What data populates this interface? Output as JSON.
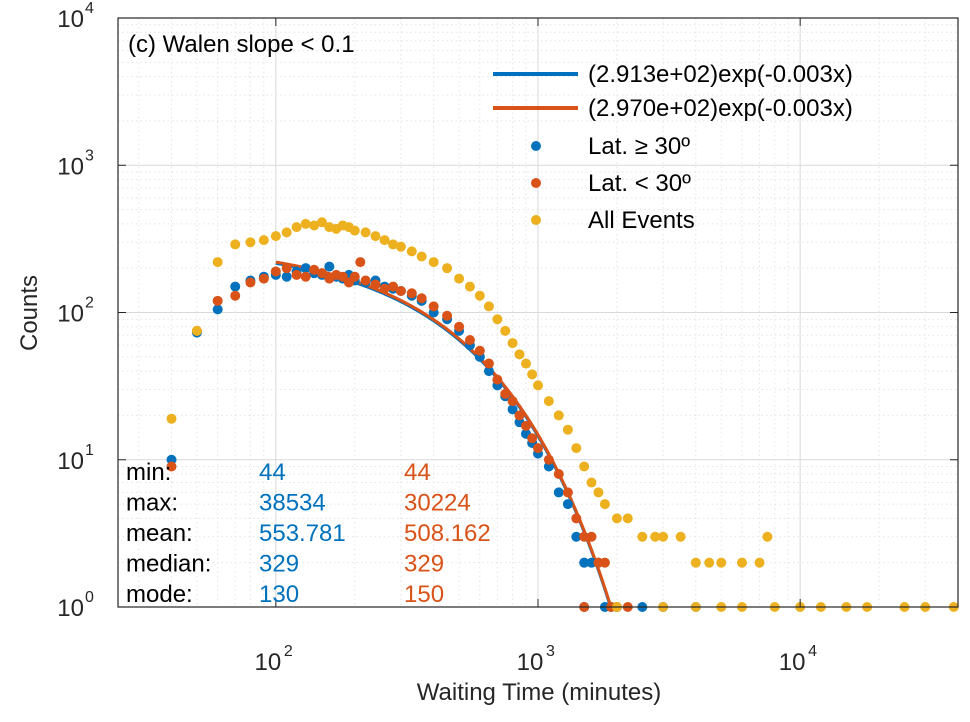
{
  "colors": {
    "lat_high": "#0072BD",
    "lat_low": "#D95319",
    "all_events": "#EDB120",
    "axes": "#262626",
    "grid": "#dcdcdc"
  },
  "chart_data": {
    "type": "scatter",
    "title": "(c) Walen slope < 0.1",
    "xlabel": "Waiting Time (minutes)",
    "ylabel": "Counts",
    "xscale": "log",
    "yscale": "log",
    "xlim": [
      25,
      40000
    ],
    "ylim": [
      1,
      10000
    ],
    "xticks": [
      {
        "value": 100,
        "base": "10",
        "exp": "2"
      },
      {
        "value": 1000,
        "base": "10",
        "exp": "3"
      },
      {
        "value": 10000,
        "base": "10",
        "exp": "4"
      }
    ],
    "yticks": [
      {
        "value": 1,
        "base": "10",
        "exp": "0"
      },
      {
        "value": 10,
        "base": "10",
        "exp": "1"
      },
      {
        "value": 100,
        "base": "10",
        "exp": "2"
      },
      {
        "value": 1000,
        "base": "10",
        "exp": "3"
      },
      {
        "value": 10000,
        "base": "10",
        "exp": "4"
      }
    ],
    "grid": true,
    "legend_position": "top-right",
    "fits": [
      {
        "name": "(2.913e+02)exp(-0.003x)",
        "color": "#0072BD",
        "a": 291.3,
        "b": -0.003,
        "x_range": [
          100,
          1920
        ]
      },
      {
        "name": "(2.970e+02)exp(-0.003x)",
        "color": "#D95319",
        "a": 297.0,
        "b": -0.003,
        "x_range": [
          100,
          1900
        ]
      }
    ],
    "series": [
      {
        "name": "Lat. ≥ 30º",
        "color": "#0072BD",
        "points": [
          [
            40,
            10
          ],
          [
            50,
            73
          ],
          [
            60,
            105
          ],
          [
            70,
            150
          ],
          [
            80,
            165
          ],
          [
            90,
            175
          ],
          [
            100,
            180
          ],
          [
            110,
            175
          ],
          [
            120,
            190
          ],
          [
            130,
            200
          ],
          [
            140,
            185
          ],
          [
            150,
            180
          ],
          [
            160,
            205
          ],
          [
            170,
            175
          ],
          [
            180,
            170
          ],
          [
            190,
            180
          ],
          [
            200,
            165
          ],
          [
            220,
            160
          ],
          [
            240,
            165
          ],
          [
            260,
            150
          ],
          [
            280,
            145
          ],
          [
            300,
            140
          ],
          [
            330,
            130
          ],
          [
            360,
            120
          ],
          [
            400,
            100
          ],
          [
            450,
            90
          ],
          [
            500,
            75
          ],
          [
            550,
            60
          ],
          [
            600,
            50
          ],
          [
            650,
            40
          ],
          [
            700,
            32
          ],
          [
            750,
            27
          ],
          [
            800,
            22
          ],
          [
            850,
            18
          ],
          [
            900,
            15
          ],
          [
            950,
            13
          ],
          [
            1000,
            11
          ],
          [
            1100,
            9
          ],
          [
            1200,
            6
          ],
          [
            1300,
            5
          ],
          [
            1400,
            3
          ],
          [
            1500,
            2
          ],
          [
            1600,
            2
          ],
          [
            1700,
            2
          ],
          [
            1800,
            1
          ],
          [
            1900,
            1
          ],
          [
            2000,
            1
          ],
          [
            1500,
            1
          ],
          [
            2500,
            1
          ],
          [
            3000,
            1
          ],
          [
            4000,
            1
          ]
        ]
      },
      {
        "name": "Lat. < 30º",
        "color": "#D95319",
        "points": [
          [
            40,
            9
          ],
          [
            50,
            75
          ],
          [
            60,
            120
          ],
          [
            70,
            130
          ],
          [
            80,
            160
          ],
          [
            90,
            170
          ],
          [
            100,
            190
          ],
          [
            110,
            200
          ],
          [
            120,
            180
          ],
          [
            130,
            175
          ],
          [
            140,
            195
          ],
          [
            150,
            185
          ],
          [
            160,
            170
          ],
          [
            170,
            180
          ],
          [
            180,
            175
          ],
          [
            190,
            160
          ],
          [
            200,
            175
          ],
          [
            210,
            220
          ],
          [
            220,
            165
          ],
          [
            240,
            155
          ],
          [
            260,
            145
          ],
          [
            280,
            150
          ],
          [
            300,
            140
          ],
          [
            330,
            135
          ],
          [
            360,
            125
          ],
          [
            400,
            110
          ],
          [
            450,
            95
          ],
          [
            500,
            80
          ],
          [
            550,
            65
          ],
          [
            600,
            55
          ],
          [
            650,
            45
          ],
          [
            700,
            35
          ],
          [
            750,
            28
          ],
          [
            800,
            25
          ],
          [
            850,
            20
          ],
          [
            900,
            17
          ],
          [
            950,
            14
          ],
          [
            1000,
            12
          ],
          [
            1100,
            10
          ],
          [
            1200,
            8
          ],
          [
            1300,
            6
          ],
          [
            1400,
            4
          ],
          [
            1500,
            3
          ],
          [
            1600,
            3
          ],
          [
            1700,
            2
          ],
          [
            1800,
            2
          ],
          [
            1900,
            1
          ],
          [
            2000,
            1
          ],
          [
            2200,
            1
          ],
          [
            1500,
            1
          ]
        ]
      },
      {
        "name": "All Events",
        "color": "#EDB120",
        "points": [
          [
            40,
            19
          ],
          [
            50,
            75
          ],
          [
            60,
            220
          ],
          [
            70,
            290
          ],
          [
            80,
            300
          ],
          [
            90,
            310
          ],
          [
            100,
            330
          ],
          [
            110,
            350
          ],
          [
            120,
            380
          ],
          [
            130,
            400
          ],
          [
            140,
            390
          ],
          [
            150,
            410
          ],
          [
            160,
            380
          ],
          [
            170,
            370
          ],
          [
            180,
            390
          ],
          [
            190,
            380
          ],
          [
            200,
            360
          ],
          [
            220,
            350
          ],
          [
            240,
            330
          ],
          [
            260,
            310
          ],
          [
            280,
            290
          ],
          [
            300,
            280
          ],
          [
            330,
            260
          ],
          [
            360,
            240
          ],
          [
            400,
            220
          ],
          [
            450,
            200
          ],
          [
            500,
            170
          ],
          [
            550,
            150
          ],
          [
            600,
            130
          ],
          [
            650,
            110
          ],
          [
            700,
            90
          ],
          [
            750,
            75
          ],
          [
            800,
            62
          ],
          [
            850,
            52
          ],
          [
            900,
            45
          ],
          [
            950,
            38
          ],
          [
            1000,
            32
          ],
          [
            1100,
            25
          ],
          [
            1200,
            20
          ],
          [
            1300,
            16
          ],
          [
            1400,
            12
          ],
          [
            1500,
            9
          ],
          [
            1600,
            7
          ],
          [
            1700,
            6
          ],
          [
            1800,
            5
          ],
          [
            2000,
            4
          ],
          [
            2200,
            4
          ],
          [
            2500,
            3
          ],
          [
            2800,
            3
          ],
          [
            3000,
            3
          ],
          [
            3500,
            3
          ],
          [
            4000,
            2
          ],
          [
            4500,
            2
          ],
          [
            5000,
            2
          ],
          [
            6000,
            2
          ],
          [
            7000,
            2
          ],
          [
            7500,
            3
          ],
          [
            2000,
            1
          ],
          [
            3000,
            1
          ],
          [
            4000,
            1
          ],
          [
            5000,
            1
          ],
          [
            6000,
            1
          ],
          [
            8000,
            1
          ],
          [
            10000,
            1
          ],
          [
            12000,
            1
          ],
          [
            15000,
            1
          ],
          [
            18000,
            1
          ],
          [
            25000,
            1
          ],
          [
            30000,
            1
          ],
          [
            38534,
            1
          ]
        ]
      }
    ],
    "stats": {
      "labels": [
        "min:",
        "max:",
        "mean:",
        "median:",
        "mode:"
      ],
      "lat_high": [
        "44",
        "38534",
        "553.781",
        "329",
        "130"
      ],
      "lat_low": [
        "44",
        "30224",
        "508.162",
        "329",
        "150"
      ]
    }
  }
}
